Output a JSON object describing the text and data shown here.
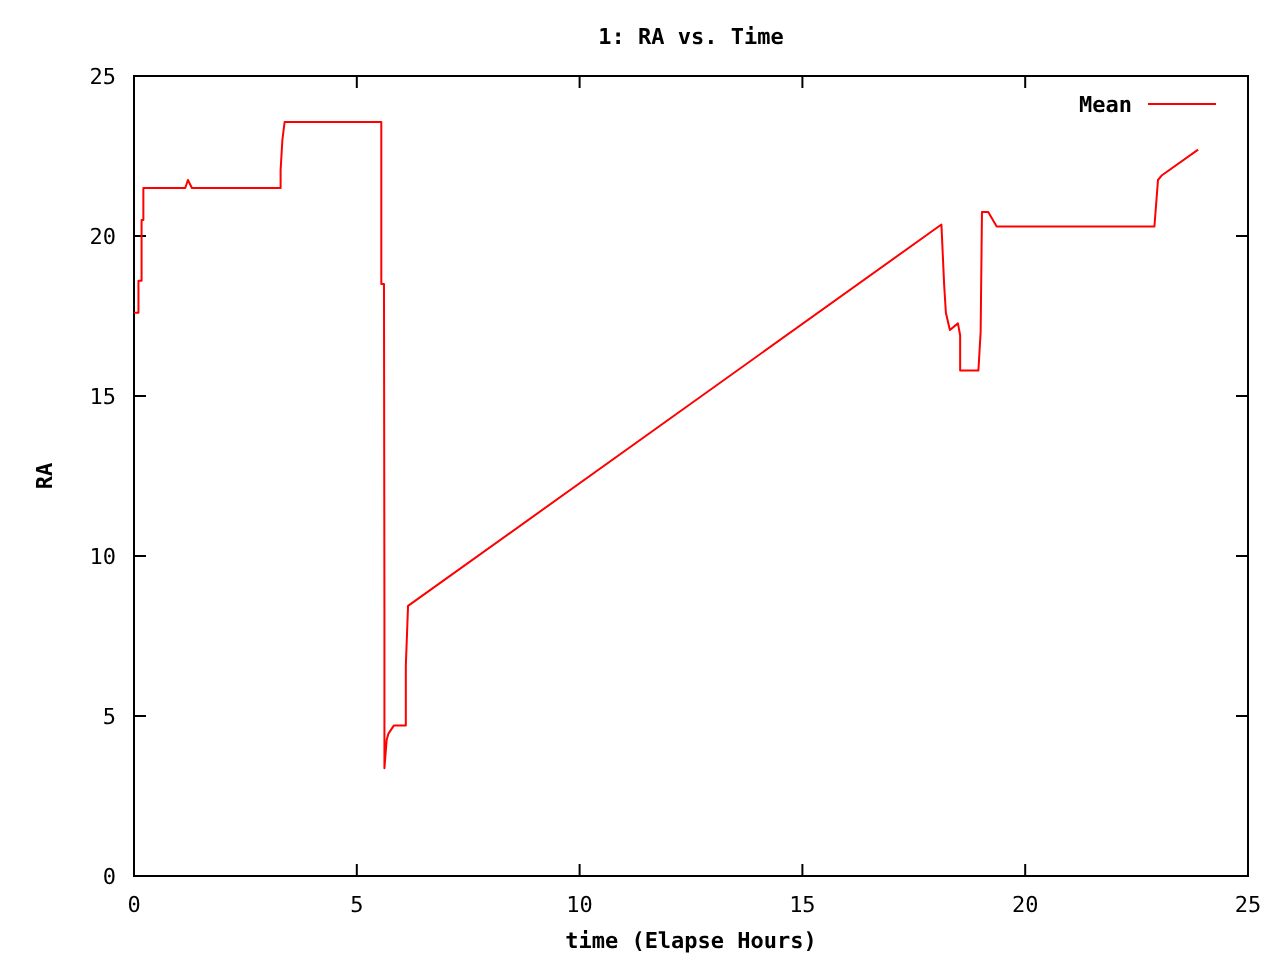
{
  "chart_data": {
    "type": "line",
    "title": "1: RA vs. Time",
    "xlabel": "time (Elapse Hours)",
    "ylabel": "RA",
    "xlim": [
      0,
      25
    ],
    "ylim": [
      0,
      25
    ],
    "xticks": [
      0,
      5,
      10,
      15,
      20,
      25
    ],
    "yticks": [
      0,
      5,
      10,
      15,
      20,
      25
    ],
    "grid": false,
    "legend": "top right",
    "series": [
      {
        "name": "Mean",
        "color": "#ff0000",
        "x": [
          0,
          0.1,
          0.1,
          0.17,
          0.17,
          0.21,
          0.21,
          1.15,
          1.21,
          1.3,
          3.29,
          3.29,
          3.33,
          3.38,
          5.55,
          5.55,
          5.61,
          5.62,
          5.62,
          5.67,
          5.71,
          5.83,
          6.1,
          6.1,
          6.15,
          18.12,
          18.18,
          18.22,
          18.31,
          18.49,
          18.54,
          18.54,
          18.95,
          19.0,
          19.03,
          19.17,
          19.36,
          22.9,
          22.98,
          23.07,
          23.88
        ],
        "values": [
          17.6,
          17.6,
          18.6,
          18.6,
          20.5,
          20.5,
          21.5,
          21.5,
          21.75,
          21.5,
          21.5,
          22.06,
          23.0,
          23.56,
          23.56,
          18.5,
          18.5,
          8.4,
          3.37,
          4.25,
          4.45,
          4.7,
          4.7,
          6.56,
          8.44,
          20.36,
          18.5,
          17.6,
          17.06,
          17.27,
          16.9,
          15.8,
          15.8,
          17.0,
          20.75,
          20.75,
          20.3,
          20.3,
          21.75,
          21.9,
          22.7
        ]
      }
    ]
  }
}
